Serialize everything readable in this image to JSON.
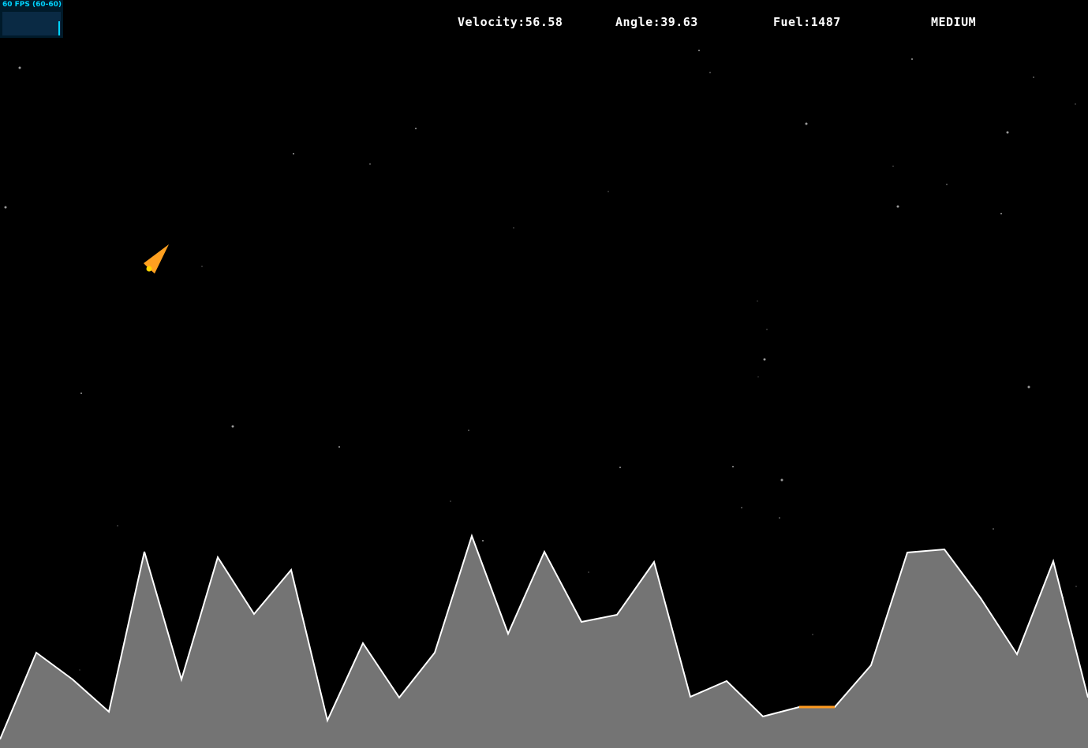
{
  "fps_meter": {
    "label": "60 FPS (60-60)",
    "color": "#00d4ff"
  },
  "hud": {
    "velocity_label": "Velocity:",
    "velocity_value": "56.58",
    "angle_label": "Angle:",
    "angle_value": "39.63",
    "fuel_label": "Fuel:",
    "fuel_value": "1487",
    "difficulty": "MEDIUM"
  },
  "colors": {
    "background": "#000000",
    "terrain_fill": "#747474",
    "terrain_outline": "#ffffff",
    "landing_pad": "#ff9a1f",
    "lander": "#ffa020",
    "thruster": "#ffd400",
    "stars": "#9a9a9a"
  },
  "icons": {
    "lander": "lander-ship-icon"
  }
}
